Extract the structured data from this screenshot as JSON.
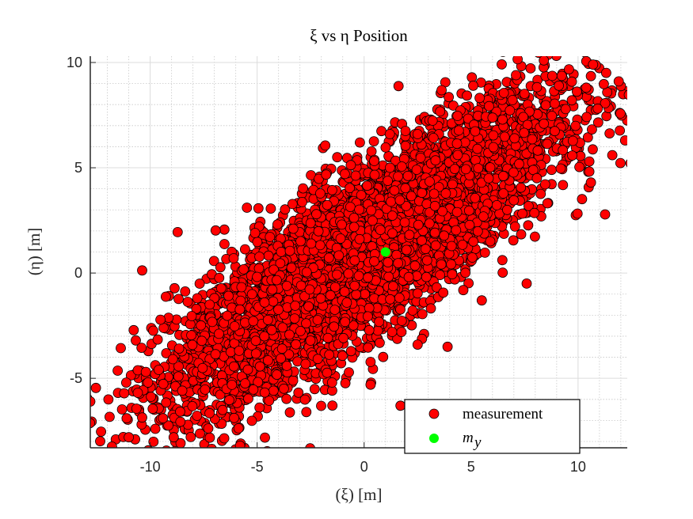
{
  "chart_data": {
    "type": "scatter",
    "title": "ξ vs η Position",
    "xlabel": "(ξ) [m]",
    "ylabel": "(η) [m]",
    "xlim": [
      -12.8,
      12.3
    ],
    "ylim": [
      -8.3,
      10.3
    ],
    "x_ticks": [
      -10,
      -5,
      0,
      5,
      10
    ],
    "y_ticks": [
      -5,
      0,
      5,
      10
    ],
    "grid": "major and minor",
    "legend_position": "bottom-right",
    "colors": {
      "measurement": "#ff0000",
      "mean": "#00ff00",
      "marker_edge": "#000000"
    },
    "series": [
      {
        "name": "measurement",
        "marker": "filled circle",
        "distribution": {
          "n_points": 6000,
          "mean": [
            0.0,
            1.0
          ],
          "std": [
            4.4,
            3.5
          ],
          "correlation": 0.84
        },
        "sample_points": [
          [
            -12.8,
            -6.1
          ],
          [
            -11.1,
            -6.9
          ],
          [
            -11.0,
            -7.8
          ],
          [
            -10.1,
            -5.2
          ],
          [
            -9.4,
            -6.9
          ],
          [
            -8.9,
            -7.8
          ],
          [
            -7.8,
            -1.2
          ],
          [
            -5.8,
            -8.2
          ],
          [
            -5.1,
            1.9
          ],
          [
            -6.1,
            0.7
          ],
          [
            -0.2,
            6.2
          ],
          [
            1.2,
            6.6
          ],
          [
            2.5,
            6.6
          ],
          [
            8.4,
            10.1
          ],
          [
            7.1,
            9.4
          ],
          [
            10.7,
            9.9
          ],
          [
            11.9,
            9.1
          ],
          [
            12.2,
            6.3
          ],
          [
            11.6,
            5.6
          ],
          [
            5.1,
            8.9
          ],
          [
            5.5,
            -1.3
          ],
          [
            7.6,
            -0.5
          ],
          [
            2.5,
            -3.4
          ],
          [
            3.9,
            -3.5
          ],
          [
            1.7,
            -6.3
          ],
          [
            10.6,
            4.3
          ],
          [
            -9.6,
            -4.6
          ],
          [
            9.1,
            8.9
          ],
          [
            -2.7,
            -6.6
          ],
          [
            0.3,
            -5.3
          ]
        ]
      },
      {
        "name": "m_y",
        "marker": "filled circle",
        "points": [
          [
            1.0,
            1.0
          ]
        ]
      }
    ]
  }
}
